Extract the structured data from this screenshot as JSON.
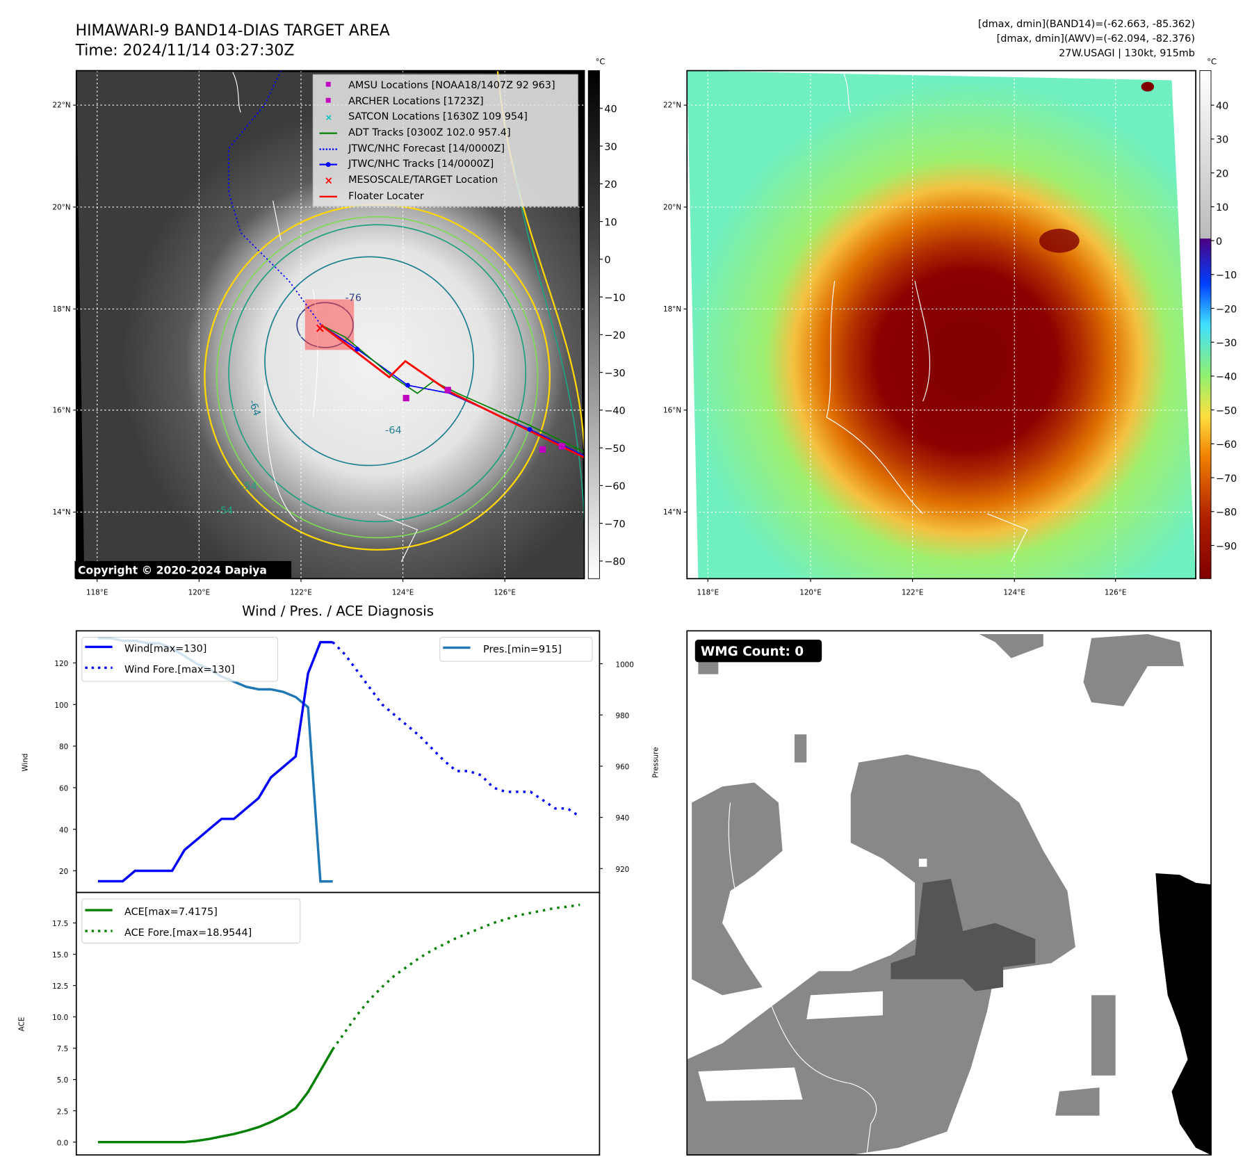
{
  "header": {
    "title_line1": "HIMAWARI-9 BAND14-DIAS TARGET AREA",
    "title_line2": "Time: 2024/11/14 03:27:30Z",
    "stats_line1": "[dmax, dmin](BAND14)=(-62.663, -85.362)",
    "stats_line2": "[dmax, dmin](AWV)=(-62.094, -82.376)",
    "stats_line3": "27W.USAGI | 130kt, 915mb"
  },
  "map": {
    "lon_ticks": [
      "118°E",
      "120°E",
      "122°E",
      "124°E",
      "126°E"
    ],
    "lat_ticks": [
      "22°N",
      "20°N",
      "18°N",
      "16°N",
      "14°N"
    ],
    "contour_labels": [
      "-76",
      "-64",
      "-64",
      "-54",
      "-54"
    ],
    "copyright": "Copyright © 2020-2024 Dapiya",
    "legend": [
      "AMSU Locations [NOAA18/1407Z 92 963]",
      "ARCHER Locations [1723Z]",
      "SATCON Locations [1630Z 109 954]",
      "ADT Tracks [0300Z 102.0 957.4]",
      "JTWC/NHC Forecast [14/0000Z]",
      "JTWC/NHC Tracks [14/0000Z]",
      "MESOSCALE/TARGET Location",
      "Floater Locater"
    ],
    "colorbar1": {
      "unit": "°C",
      "ticks": [
        "40",
        "30",
        "20",
        "10",
        "0",
        "−10",
        "−20",
        "−30",
        "−40",
        "−50",
        "−60",
        "−70",
        "−80"
      ]
    },
    "colorbar2": {
      "unit": "°C",
      "ticks": [
        "40",
        "30",
        "20",
        "10",
        "0",
        "−10",
        "−20",
        "−30",
        "−40",
        "−50",
        "−60",
        "−70",
        "−80",
        "−90"
      ]
    }
  },
  "colors": {
    "wind": "#0000ff",
    "pressure": "#1f77b4",
    "ace": "#008000",
    "track_red": "#ff0000",
    "amsu": "#bf00bf",
    "satcon": "#00bfbf"
  },
  "chart_data": [
    {
      "type": "line",
      "title": "Wind / Pres. / ACE Diagnosis",
      "ylabel": "Wind",
      "y2label": "Pressure",
      "ylim": [
        10,
        133
      ],
      "y2lim": [
        911,
        1011
      ],
      "yticks": [
        20,
        40,
        60,
        80,
        100,
        120
      ],
      "y2ticks": [
        920,
        940,
        960,
        980,
        1000
      ],
      "series": [
        {
          "name": "Wind[max=130]",
          "x_start": 0,
          "values": [
            15,
            15,
            15,
            20,
            20,
            20,
            20,
            30,
            35,
            40,
            45,
            45,
            50,
            55,
            65,
            70,
            75,
            115,
            130,
            130
          ]
        },
        {
          "name": "Wind Fore.[max=130]",
          "x_start": 19,
          "values": [
            130,
            124,
            116,
            108,
            100,
            95,
            90,
            85,
            79,
            73,
            68,
            68,
            66,
            60,
            58,
            58,
            58,
            54,
            50,
            50,
            46
          ]
        },
        {
          "name": "Pres.[min=915]",
          "axis": "right",
          "x_start": 0,
          "values": [
            1010,
            1010,
            1009,
            1009,
            1008,
            1008,
            1006,
            1003,
            1000,
            998,
            995,
            993,
            991,
            990,
            990,
            989,
            987,
            983,
            915,
            915
          ]
        }
      ]
    },
    {
      "type": "line",
      "ylabel": "ACE",
      "ylim": [
        -0.9,
        19.6
      ],
      "yticks": [
        "0.0",
        "2.5",
        "5.0",
        "7.5",
        "10.0",
        "12.5",
        "15.0",
        "17.5"
      ],
      "series": [
        {
          "name": "ACE[max=7.4175]",
          "x_start": 0,
          "values": [
            0,
            0,
            0,
            0,
            0,
            0,
            0,
            0,
            0.1,
            0.25,
            0.45,
            0.65,
            0.9,
            1.2,
            1.6,
            2.1,
            2.7,
            4.0,
            5.7,
            7.4175
          ]
        },
        {
          "name": "ACE Fore.[max=18.9544]",
          "x_start": 19,
          "values": [
            7.4175,
            8.8,
            10.2,
            11.4,
            12.4,
            13.3,
            14.0,
            14.7,
            15.3,
            15.8,
            16.3,
            16.7,
            17.1,
            17.5,
            17.8,
            18.1,
            18.3,
            18.5,
            18.7,
            18.8,
            18.9544
          ]
        }
      ]
    }
  ],
  "wmg": {
    "label": "WMG Count: 0"
  }
}
